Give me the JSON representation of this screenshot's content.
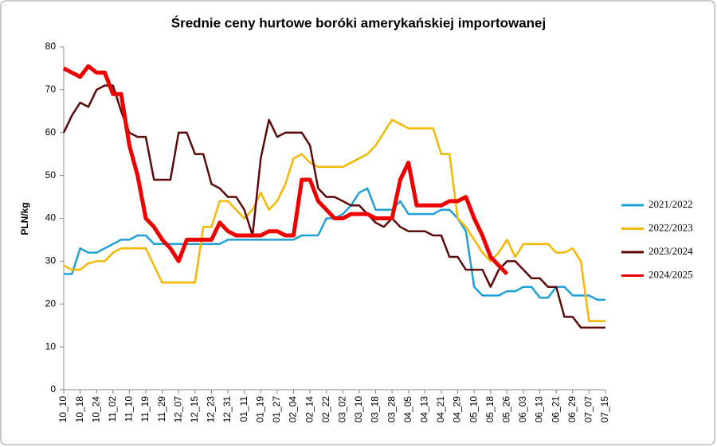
{
  "chart_data": {
    "type": "line",
    "title": "Średnie ceny hurtowe boróki amerykańskiej importowanej",
    "y_label": "PLN/kg",
    "categories": [
      "10_10",
      null,
      "10_18",
      null,
      "10_24",
      null,
      "11_02",
      null,
      "11_10",
      null,
      "11_19",
      null,
      "11_29",
      null,
      "12_07",
      null,
      "12_15",
      null,
      "12_23",
      null,
      "12_31",
      null,
      "01_11",
      null,
      "01_19",
      null,
      "01_27",
      null,
      "02_04",
      null,
      "02_14",
      null,
      "02_22",
      null,
      "03_02",
      null,
      "03_10",
      null,
      "03_18",
      null,
      "03_28",
      null,
      "04_05",
      null,
      "04_13",
      null,
      "04_21",
      null,
      "04_29",
      null,
      "05_10",
      null,
      "05_18",
      null,
      "05_26",
      null,
      "06_03",
      null,
      "06_13",
      null,
      "06_21",
      null,
      "06_29",
      null,
      "07_07",
      null,
      "07_15"
    ],
    "series": [
      {
        "name": "2021/2022",
        "color": "#1fa0d6",
        "width": 2.5,
        "values": [
          27,
          27,
          33,
          32,
          32,
          33,
          34,
          35,
          35,
          36,
          36,
          34,
          34,
          34,
          34,
          34,
          34,
          34,
          34,
          34,
          35,
          35,
          35,
          35,
          35,
          35,
          35,
          35,
          35,
          36,
          36,
          36,
          40,
          40,
          41,
          43,
          46,
          47,
          42,
          42,
          42,
          44,
          41,
          41,
          41,
          41,
          42,
          42,
          40,
          37,
          24,
          22,
          22,
          22,
          23,
          23,
          24,
          24,
          21.5,
          21.5,
          24,
          24,
          22,
          22,
          22,
          21,
          21
        ]
      },
      {
        "name": "2022/2023",
        "color": "#f5b800",
        "width": 2.5,
        "values": [
          29,
          28,
          28,
          29.5,
          30,
          30,
          32,
          33,
          33,
          33,
          33,
          29,
          25,
          25,
          25,
          25,
          25,
          38,
          38,
          44,
          44,
          42,
          40,
          42,
          46,
          42,
          44,
          48,
          54,
          55,
          53,
          52,
          52,
          52,
          52,
          53,
          54,
          55,
          57,
          60,
          63,
          62,
          61,
          61,
          61,
          61,
          55,
          55,
          40,
          38,
          35,
          32,
          30,
          32,
          35,
          31,
          34,
          34,
          34,
          34,
          32,
          32,
          33,
          30,
          16,
          16,
          16
        ]
      },
      {
        "name": "2023/2024",
        "color": "#5c0a0a",
        "width": 2.5,
        "values": [
          60,
          64,
          67,
          66,
          70,
          71,
          71,
          65,
          60,
          59,
          59,
          49,
          49,
          49,
          60,
          60,
          55,
          55,
          48,
          47,
          45,
          45,
          42,
          36,
          54,
          63,
          59,
          60,
          60,
          60,
          57,
          47,
          45,
          45,
          44,
          43,
          43,
          41,
          39,
          38,
          40,
          38,
          37,
          37,
          37,
          36,
          36,
          31,
          31,
          28,
          28,
          28,
          24,
          28,
          30,
          30,
          28,
          26,
          26,
          24,
          24,
          17,
          17,
          14.5,
          14.5,
          14.5,
          14.5
        ]
      },
      {
        "name": "2024/2025",
        "color": "#ee0000",
        "width": 5,
        "values": [
          75,
          74,
          73,
          75.5,
          74,
          74,
          69,
          69,
          57,
          50,
          40,
          38,
          35,
          33,
          30,
          35,
          35,
          35,
          35,
          39,
          37,
          36,
          36,
          36,
          36,
          37,
          37,
          36,
          36,
          49,
          49,
          44,
          42,
          40,
          40,
          41,
          41,
          41,
          40,
          40,
          40,
          49,
          53,
          43,
          43,
          43,
          43,
          44,
          44,
          45,
          40,
          36,
          31,
          29,
          27,
          null,
          null,
          null,
          null,
          null,
          null,
          null,
          null,
          null,
          null,
          null,
          null
        ]
      }
    ],
    "ylim": [
      0,
      80
    ],
    "yticks": [
      0,
      10,
      20,
      30,
      40,
      50,
      60,
      70,
      80
    ],
    "grid": false
  }
}
